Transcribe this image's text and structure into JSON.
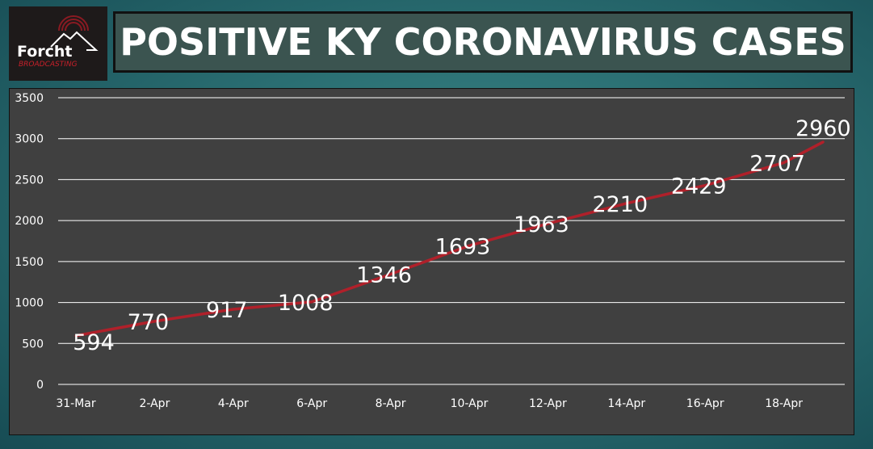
{
  "logo": {
    "text_main": "Forcht",
    "text_sub": "BROADCASTING"
  },
  "header": {
    "title": "POSITIVE KY CORONAVIRUS CASES"
  },
  "colors": {
    "line": "#b0202a",
    "plot_bg": "#404040",
    "grid": "#ffffff",
    "text": "#ffffff"
  },
  "chart_data": {
    "type": "line",
    "title": "POSITIVE KY CORONAVIRUS CASES",
    "xlabel": "",
    "ylabel": "",
    "x_tick_labels": [
      "31-Mar",
      "2-Apr",
      "4-Apr",
      "6-Apr",
      "8-Apr",
      "10-Apr",
      "12-Apr",
      "14-Apr",
      "16-Apr",
      "18-Apr"
    ],
    "y_tick_labels": [
      "0",
      "500",
      "1000",
      "1500",
      "2000",
      "2500",
      "3000",
      "3500"
    ],
    "ylim": [
      0,
      3500
    ],
    "grid": true,
    "legend": "none",
    "x": [
      "31-Mar",
      "2-Apr",
      "4-Apr",
      "6-Apr",
      "8-Apr",
      "10-Apr",
      "12-Apr",
      "14-Apr",
      "16-Apr",
      "18-Apr",
      "19-Apr"
    ],
    "values": [
      594,
      770,
      917,
      1008,
      1346,
      1693,
      1963,
      2210,
      2429,
      2707,
      2960
    ],
    "data_labels": [
      "594",
      "770",
      "917",
      "1008",
      "1346",
      "1693",
      "1963",
      "2210",
      "2429",
      "2707",
      "2960"
    ]
  }
}
